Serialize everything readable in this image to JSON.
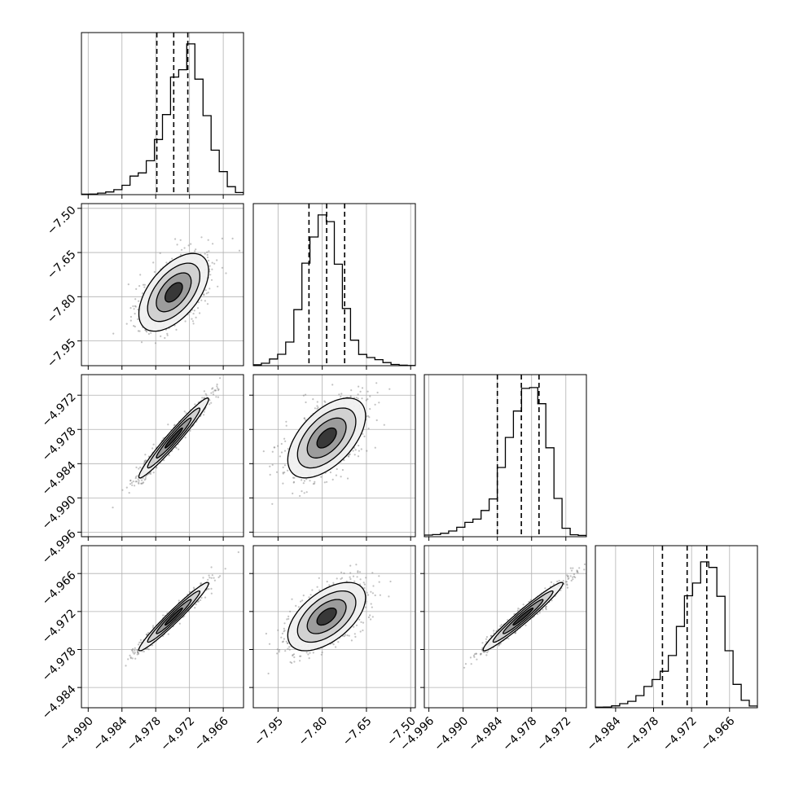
{
  "chart_data": {
    "type": "corner",
    "grid": true,
    "parameters": [
      {
        "range": [
          -4.9912,
          -4.9624
        ],
        "ticks": [
          -4.99,
          -4.984,
          -4.978,
          -4.972,
          -4.966
        ],
        "tick_labels": [
          "−4.990",
          "−4.984",
          "−4.978",
          "−4.972",
          "−4.966"
        ],
        "center": -4.9748,
        "spread": 0.0031,
        "quantiles": [
          -4.9778,
          -4.9748,
          -4.9723
        ],
        "hist_max_tick_fraction": 0.93,
        "hist": [
          0.003,
          0.004,
          0.01,
          0.018,
          0.033,
          0.062,
          0.123,
          0.144,
          0.225,
          0.366,
          0.531,
          0.78,
          0.829,
          1.0,
          0.766,
          0.524,
          0.295,
          0.153,
          0.053,
          0.014
        ]
      },
      {
        "range": [
          -8.034,
          -7.484
        ],
        "ticks": [
          -7.95,
          -7.8,
          -7.65,
          -7.5
        ],
        "tick_labels": [
          "−7.95",
          "−7.80",
          "−7.65",
          "−7.50"
        ],
        "center": -7.785,
        "spread": 0.066,
        "quantiles": [
          -7.845,
          -7.785,
          -7.724
        ],
        "hist_max_tick_fraction": 0.93,
        "hist": [
          0.006,
          0.016,
          0.043,
          0.074,
          0.153,
          0.363,
          0.664,
          0.833,
          0.976,
          0.933,
          0.657,
          0.37,
          0.165,
          0.073,
          0.053,
          0.039,
          0.02,
          0.008,
          0.003,
          0.001
        ]
      },
      {
        "range": [
          -4.9968,
          -4.9684
        ],
        "ticks": [
          -4.996,
          -4.99,
          -4.984,
          -4.978,
          -4.972
        ],
        "tick_labels": [
          "−4.996",
          "−4.990",
          "−4.984",
          "−4.978",
          "−4.972"
        ],
        "center": -4.9795,
        "spread": 0.0035,
        "quantiles": [
          -4.984,
          -4.9798,
          -4.9767
        ],
        "hist_max_tick_fraction": 0.92,
        "hist": [
          0.01,
          0.013,
          0.021,
          0.035,
          0.058,
          0.088,
          0.108,
          0.161,
          0.232,
          0.425,
          0.609,
          0.771,
          0.91,
          0.915,
          0.816,
          0.546,
          0.235,
          0.052,
          0.012,
          0.008
        ]
      },
      {
        "range": [
          -4.9872,
          -4.9616
        ],
        "ticks": [
          -4.984,
          -4.978,
          -4.972,
          -4.966
        ],
        "tick_labels": [
          "−4.984",
          "−4.978",
          "−4.972",
          "−4.966"
        ],
        "center": -4.9728,
        "spread": 0.0027,
        "quantiles": [
          -4.9766,
          -4.9727,
          -4.9696
        ],
        "hist_max_tick_fraction": 0.9,
        "hist": [
          0.004,
          0.005,
          0.013,
          0.028,
          0.044,
          0.083,
          0.146,
          0.193,
          0.25,
          0.358,
          0.557,
          0.768,
          0.855,
          1.0,
          0.962,
          0.764,
          0.391,
          0.16,
          0.051,
          0.012
        ]
      }
    ],
    "correlations": {
      "1,0": 0.55,
      "2,0": 0.97,
      "2,1": 0.55,
      "3,0": 0.97,
      "3,1": 0.55,
      "3,2": 0.97
    },
    "contour_levels_sigma": [
      0.5,
      1.0,
      1.5,
      2.0
    ]
  }
}
